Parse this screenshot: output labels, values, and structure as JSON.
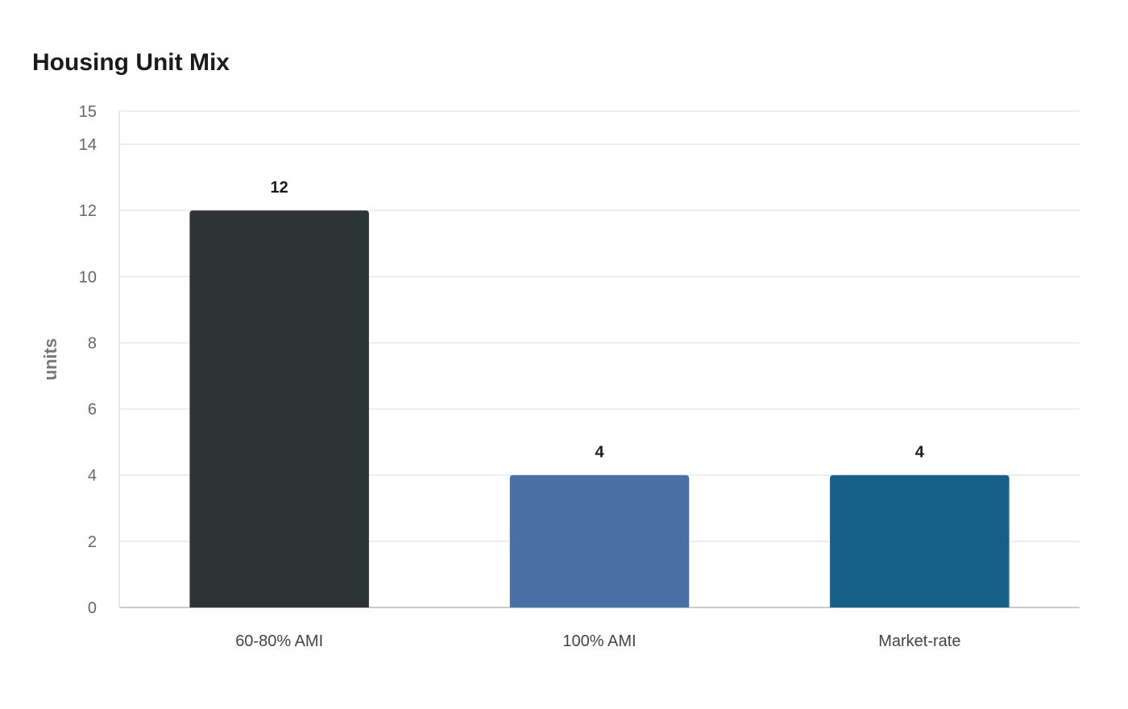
{
  "chart_data": {
    "type": "bar",
    "title": "Housing Unit Mix",
    "xlabel": "",
    "ylabel": "units",
    "categories": [
      "60-80% AMI",
      "100% AMI",
      "Market-rate"
    ],
    "values": [
      12,
      4,
      4
    ],
    "data_labels": [
      "12",
      "4",
      "4"
    ],
    "colors": [
      "#2d3436",
      "#4a6fa5",
      "#166088"
    ],
    "ylim": [
      0,
      15
    ],
    "yticks": [
      0,
      2,
      4,
      6,
      8,
      10,
      12,
      14,
      15
    ],
    "grid": true,
    "legend": "none"
  }
}
